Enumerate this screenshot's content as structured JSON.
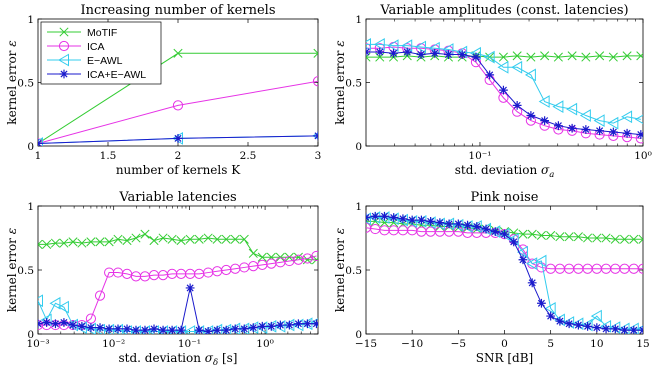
{
  "chart_data": [
    {
      "type": "line",
      "title": "Increasing number of kernels",
      "xlabel": "number of kernels K",
      "ylabel": "kernel error ε",
      "xscale": "linear",
      "xlim": [
        1,
        3
      ],
      "ylim": [
        0,
        1
      ],
      "xticks": [
        1,
        1.5,
        2,
        2.5,
        3
      ],
      "xtick_labels": [
        "1",
        "1.5",
        "2",
        "2.5",
        "3"
      ],
      "yticks": [
        0,
        0.5,
        1
      ],
      "ytick_labels": [
        "0",
        "0.5",
        "1"
      ],
      "legend": {
        "placement": "top-left",
        "entries": [
          "MoTIF",
          "ICA",
          "E−AWL",
          "ICA+E−AWL"
        ]
      },
      "series": [
        {
          "name": "MoTIF",
          "color": "#33cc33",
          "marker": "x",
          "x": [
            1,
            2,
            3
          ],
          "values": [
            0.02,
            0.73,
            0.73
          ]
        },
        {
          "name": "ICA",
          "color": "#e633e6",
          "marker": "o",
          "x": [
            1,
            2,
            3
          ],
          "values": [
            0.02,
            0.32,
            0.51
          ]
        },
        {
          "name": "E−AWL",
          "color": "#33ccee",
          "marker": "tri",
          "x": [
            1,
            2,
            3
          ],
          "values": [
            0.02,
            0.06,
            0.08
          ]
        },
        {
          "name": "ICA+E−AWL",
          "color": "#1a1acc",
          "marker": "star",
          "x": [
            1,
            2,
            3
          ],
          "values": [
            0.02,
            0.06,
            0.08
          ]
        }
      ]
    },
    {
      "type": "line",
      "title": "Variable amplitudes (const. latencies)",
      "xlabel": "std. deviation σ_a",
      "ylabel": "kernel error ε",
      "xscale": "log",
      "xlim": [
        0.02,
        1
      ],
      "ylim": [
        0,
        1
      ],
      "xticks": [
        0.1,
        1
      ],
      "xtick_labels": [
        "10⁻¹",
        "10⁰"
      ],
      "yticks": [
        0,
        0.5,
        1
      ],
      "ytick_labels": [
        "0",
        "0.5",
        "1"
      ],
      "series": [
        {
          "name": "MoTIF",
          "color": "#33cc33",
          "marker": "x",
          "x": [
            0.02,
            0.0243,
            0.0295,
            0.0358,
            0.0435,
            0.0528,
            0.0641,
            0.0778,
            0.0945,
            0.1147,
            0.1393,
            0.1691,
            0.2053,
            0.2493,
            0.3027,
            0.3675,
            0.4462,
            0.5418,
            0.6578,
            0.7987,
            0.9698
          ],
          "values": [
            0.7,
            0.7,
            0.7,
            0.71,
            0.7,
            0.71,
            0.7,
            0.7,
            0.71,
            0.7,
            0.7,
            0.71,
            0.7,
            0.71,
            0.7,
            0.71,
            0.7,
            0.71,
            0.7,
            0.71,
            0.71
          ]
        },
        {
          "name": "ICA",
          "color": "#e633e6",
          "marker": "o",
          "x": [
            0.02,
            0.0243,
            0.0295,
            0.0358,
            0.0435,
            0.0528,
            0.0641,
            0.0778,
            0.0945,
            0.1147,
            0.1393,
            0.1691,
            0.2053,
            0.2493,
            0.3027,
            0.3675,
            0.4462,
            0.5418,
            0.6578,
            0.7987,
            0.9698
          ],
          "values": [
            0.77,
            0.77,
            0.78,
            0.77,
            0.77,
            0.76,
            0.75,
            0.73,
            0.66,
            0.52,
            0.38,
            0.27,
            0.2,
            0.16,
            0.13,
            0.12,
            0.1,
            0.09,
            0.08,
            0.07,
            0.06
          ]
        },
        {
          "name": "E−AWL",
          "color": "#33ccee",
          "marker": "tri",
          "x": [
            0.02,
            0.0243,
            0.0295,
            0.0358,
            0.0435,
            0.0528,
            0.0641,
            0.0778,
            0.0945,
            0.1147,
            0.1393,
            0.1691,
            0.2053,
            0.2493,
            0.3027,
            0.3675,
            0.4462,
            0.5418,
            0.6578,
            0.7987,
            0.9698
          ],
          "values": [
            0.8,
            0.8,
            0.79,
            0.79,
            0.78,
            0.77,
            0.76,
            0.74,
            0.73,
            0.7,
            0.62,
            0.62,
            0.56,
            0.35,
            0.31,
            0.29,
            0.24,
            0.2,
            0.18,
            0.23,
            0.21
          ]
        },
        {
          "name": "ICA+E−AWL",
          "color": "#1a1acc",
          "marker": "star",
          "x": [
            0.02,
            0.0243,
            0.0295,
            0.0358,
            0.0435,
            0.0528,
            0.0641,
            0.0778,
            0.0945,
            0.1147,
            0.1393,
            0.1691,
            0.2053,
            0.2493,
            0.3027,
            0.3675,
            0.4462,
            0.5418,
            0.6578,
            0.7987,
            0.9698
          ],
          "values": [
            0.74,
            0.74,
            0.73,
            0.74,
            0.72,
            0.73,
            0.72,
            0.72,
            0.7,
            0.56,
            0.44,
            0.32,
            0.24,
            0.2,
            0.16,
            0.14,
            0.13,
            0.12,
            0.11,
            0.1,
            0.09
          ]
        }
      ]
    },
    {
      "type": "line",
      "title": "Variable latencies",
      "xlabel": "std. deviation σ_δ [s]",
      "ylabel": "kernel error ε",
      "xscale": "log",
      "xlim": [
        0.001,
        5
      ],
      "ylim": [
        0,
        1
      ],
      "xticks": [
        0.001,
        0.01,
        0.1,
        1
      ],
      "xtick_labels": [
        "10⁻³",
        "10⁻²",
        "10⁻¹",
        "10⁰"
      ],
      "yticks": [
        0,
        0.5,
        1
      ],
      "ytick_labels": [
        "0",
        "0.5",
        "1"
      ],
      "series": [
        {
          "name": "MoTIF",
          "color": "#33cc33",
          "marker": "x",
          "x": [
            0.001,
            0.0013,
            0.0017,
            0.0022,
            0.0029,
            0.0038,
            0.005,
            0.0066,
            0.0087,
            0.0114,
            0.015,
            0.0197,
            0.0259,
            0.0341,
            0.0449,
            0.0591,
            0.0777,
            0.1023,
            0.1345,
            0.177,
            0.2329,
            0.3065,
            0.4033,
            0.5307,
            0.6983,
            0.9188,
            1.209,
            1.5909,
            2.0933,
            2.7545,
            3.6246,
            4.7694
          ],
          "values": [
            0.7,
            0.7,
            0.71,
            0.71,
            0.72,
            0.71,
            0.72,
            0.72,
            0.72,
            0.74,
            0.73,
            0.75,
            0.78,
            0.73,
            0.75,
            0.74,
            0.73,
            0.74,
            0.74,
            0.75,
            0.74,
            0.74,
            0.74,
            0.74,
            0.63,
            0.6,
            0.6,
            0.6,
            0.6,
            0.6,
            0.58,
            0.58
          ]
        },
        {
          "name": "ICA",
          "color": "#e633e6",
          "marker": "o",
          "x": [
            0.001,
            0.0013,
            0.0017,
            0.0022,
            0.0029,
            0.0038,
            0.005,
            0.0066,
            0.0087,
            0.0114,
            0.015,
            0.0197,
            0.0259,
            0.0341,
            0.0449,
            0.0591,
            0.0777,
            0.1023,
            0.1345,
            0.177,
            0.2329,
            0.3065,
            0.4033,
            0.5307,
            0.6983,
            0.9188,
            1.209,
            1.5909,
            2.0933,
            2.7545,
            3.6246,
            4.7694
          ],
          "values": [
            0.07,
            0.07,
            0.07,
            0.07,
            0.07,
            0.07,
            0.12,
            0.3,
            0.48,
            0.48,
            0.47,
            0.45,
            0.45,
            0.46,
            0.46,
            0.47,
            0.47,
            0.47,
            0.47,
            0.48,
            0.49,
            0.5,
            0.51,
            0.52,
            0.53,
            0.54,
            0.55,
            0.56,
            0.57,
            0.58,
            0.59,
            0.61
          ]
        },
        {
          "name": "E−AWL",
          "color": "#33ccee",
          "marker": "tri",
          "x": [
            0.001,
            0.0013,
            0.0017,
            0.0022,
            0.0029,
            0.0038,
            0.005,
            0.0066,
            0.0087,
            0.0114,
            0.015,
            0.0197,
            0.0259,
            0.0341,
            0.0449,
            0.0591,
            0.0777,
            0.1023,
            0.1345,
            0.177,
            0.2329,
            0.3065,
            0.4033,
            0.5307,
            0.6983,
            0.9188,
            1.209,
            1.5909,
            2.0933,
            2.7545,
            3.6246,
            4.7694
          ],
          "values": [
            0.26,
            0.11,
            0.24,
            0.21,
            0.07,
            0.05,
            0.04,
            0.03,
            0.03,
            0.03,
            0.02,
            0.02,
            0.02,
            0.02,
            0.02,
            0.02,
            0.02,
            0.02,
            0.02,
            0.02,
            0.03,
            0.03,
            0.04,
            0.04,
            0.05,
            0.05,
            0.06,
            0.06,
            0.07,
            0.07,
            0.08,
            0.09
          ]
        },
        {
          "name": "ICA+E−AWL",
          "color": "#1a1acc",
          "marker": "star",
          "x": [
            0.001,
            0.0013,
            0.0017,
            0.0022,
            0.0029,
            0.0038,
            0.005,
            0.0066,
            0.0087,
            0.0114,
            0.015,
            0.0197,
            0.0259,
            0.0341,
            0.0449,
            0.0591,
            0.0777,
            0.1023,
            0.1345,
            0.177,
            0.2329,
            0.3065,
            0.4033,
            0.5307,
            0.6983,
            0.9188,
            1.209,
            1.5909,
            2.0933,
            2.7545,
            3.6246,
            4.7694
          ],
          "values": [
            0.08,
            0.09,
            0.08,
            0.09,
            0.07,
            0.06,
            0.05,
            0.05,
            0.04,
            0.04,
            0.04,
            0.03,
            0.03,
            0.04,
            0.03,
            0.03,
            0.03,
            0.36,
            0.03,
            0.02,
            0.03,
            0.03,
            0.04,
            0.04,
            0.05,
            0.06,
            0.06,
            0.07,
            0.07,
            0.08,
            0.08,
            0.08
          ]
        }
      ]
    },
    {
      "type": "line",
      "title": "Pink noise",
      "xlabel": "SNR [dB]",
      "ylabel": "kernel error ε",
      "xscale": "linear",
      "xlim": [
        -15,
        15
      ],
      "ylim": [
        0,
        1
      ],
      "xticks": [
        -15,
        -10,
        -5,
        0,
        5,
        10,
        15
      ],
      "xtick_labels": [
        "−15",
        "−10",
        "−5",
        "0",
        "5",
        "10",
        "15"
      ],
      "yticks": [
        0,
        0.5,
        1
      ],
      "ytick_labels": [
        "0",
        "0.5",
        "1"
      ],
      "series": [
        {
          "name": "MoTIF",
          "color": "#33cc33",
          "marker": "x",
          "x": [
            -15,
            -14,
            -13,
            -12,
            -11,
            -10,
            -9,
            -8,
            -7,
            -6,
            -5,
            -4,
            -3,
            -2,
            -1,
            0,
            1,
            2,
            3,
            4,
            5,
            6,
            7,
            8,
            9,
            10,
            11,
            12,
            13,
            14,
            15
          ],
          "values": [
            0.88,
            0.88,
            0.87,
            0.87,
            0.86,
            0.86,
            0.85,
            0.85,
            0.84,
            0.84,
            0.83,
            0.83,
            0.82,
            0.82,
            0.81,
            0.8,
            0.79,
            0.78,
            0.78,
            0.77,
            0.77,
            0.76,
            0.76,
            0.76,
            0.75,
            0.75,
            0.75,
            0.74,
            0.74,
            0.74,
            0.74
          ]
        },
        {
          "name": "ICA",
          "color": "#e633e6",
          "marker": "o",
          "x": [
            -15,
            -14,
            -13,
            -12,
            -11,
            -10,
            -9,
            -8,
            -7,
            -6,
            -5,
            -4,
            -3,
            -2,
            -1,
            0,
            1,
            2,
            3,
            4,
            5,
            6,
            7,
            8,
            9,
            10,
            11,
            12,
            13,
            14,
            15
          ],
          "values": [
            0.83,
            0.82,
            0.81,
            0.81,
            0.81,
            0.81,
            0.8,
            0.8,
            0.8,
            0.8,
            0.8,
            0.79,
            0.79,
            0.79,
            0.79,
            0.78,
            0.74,
            0.66,
            0.55,
            0.52,
            0.51,
            0.51,
            0.51,
            0.51,
            0.51,
            0.51,
            0.51,
            0.51,
            0.51,
            0.51,
            0.51
          ]
        },
        {
          "name": "E−AWL",
          "color": "#33ccee",
          "marker": "tri",
          "x": [
            -15,
            -14,
            -13,
            -12,
            -11,
            -10,
            -9,
            -8,
            -7,
            -6,
            -5,
            -4,
            -3,
            -2,
            -1,
            0,
            1,
            2,
            3,
            4,
            5,
            6,
            7,
            8,
            9,
            10,
            11,
            12,
            13,
            14,
            15
          ],
          "values": [
            0.9,
            0.91,
            0.91,
            0.9,
            0.89,
            0.88,
            0.88,
            0.87,
            0.86,
            0.86,
            0.85,
            0.84,
            0.84,
            0.82,
            0.8,
            0.78,
            0.74,
            0.64,
            0.55,
            0.57,
            0.2,
            0.11,
            0.09,
            0.08,
            0.07,
            0.14,
            0.06,
            0.05,
            0.04,
            0.04,
            0.04
          ]
        },
        {
          "name": "ICA+E−AWL",
          "color": "#1a1acc",
          "marker": "star",
          "x": [
            -15,
            -14,
            -13,
            -12,
            -11,
            -10,
            -9,
            -8,
            -7,
            -6,
            -5,
            -4,
            -3,
            -2,
            -1,
            0,
            1,
            2,
            3,
            4,
            5,
            6,
            7,
            8,
            9,
            10,
            11,
            12,
            13,
            14,
            15
          ],
          "values": [
            0.91,
            0.92,
            0.92,
            0.91,
            0.9,
            0.89,
            0.89,
            0.88,
            0.87,
            0.86,
            0.86,
            0.85,
            0.84,
            0.82,
            0.8,
            0.78,
            0.72,
            0.58,
            0.4,
            0.24,
            0.14,
            0.1,
            0.08,
            0.07,
            0.06,
            0.05,
            0.04,
            0.04,
            0.03,
            0.03,
            0.03
          ]
        }
      ]
    }
  ]
}
